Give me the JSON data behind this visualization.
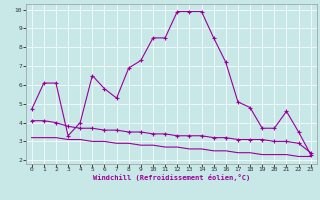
{
  "xlabel": "Windchill (Refroidissement éolien,°C)",
  "ylabel": "",
  "bg_color": "#c8e8e8",
  "line_color": "#990099",
  "xlim": [
    -0.5,
    23.5
  ],
  "ylim": [
    1.8,
    10.3
  ],
  "yticks": [
    2,
    3,
    4,
    5,
    6,
    7,
    8,
    9,
    10
  ],
  "xticks": [
    0,
    1,
    2,
    3,
    4,
    5,
    6,
    7,
    8,
    9,
    10,
    11,
    12,
    13,
    14,
    15,
    16,
    17,
    18,
    19,
    20,
    21,
    22,
    23
  ],
  "line1_x": [
    0,
    1,
    2,
    3,
    4,
    5,
    6,
    7,
    8,
    9,
    10,
    11,
    12,
    13,
    14,
    15,
    16,
    17,
    18,
    19,
    20,
    21,
    22,
    23
  ],
  "line1_y": [
    4.7,
    6.1,
    6.1,
    3.3,
    4.0,
    6.5,
    5.8,
    5.3,
    6.9,
    7.3,
    8.5,
    8.5,
    9.9,
    9.9,
    9.9,
    8.5,
    7.2,
    5.1,
    4.8,
    3.7,
    3.7,
    4.6,
    3.5,
    2.3
  ],
  "line2_x": [
    0,
    1,
    2,
    3,
    4,
    5,
    6,
    7,
    8,
    9,
    10,
    11,
    12,
    13,
    14,
    15,
    16,
    17,
    18,
    19,
    20,
    21,
    22,
    23
  ],
  "line2_y": [
    4.1,
    4.1,
    4.0,
    3.8,
    3.7,
    3.7,
    3.6,
    3.6,
    3.5,
    3.5,
    3.4,
    3.4,
    3.3,
    3.3,
    3.3,
    3.2,
    3.2,
    3.1,
    3.1,
    3.1,
    3.0,
    3.0,
    2.9,
    2.4
  ],
  "line3_x": [
    0,
    1,
    2,
    3,
    4,
    5,
    6,
    7,
    8,
    9,
    10,
    11,
    12,
    13,
    14,
    15,
    16,
    17,
    18,
    19,
    20,
    21,
    22,
    23
  ],
  "line3_y": [
    3.2,
    3.2,
    3.2,
    3.1,
    3.1,
    3.0,
    3.0,
    2.9,
    2.9,
    2.8,
    2.8,
    2.7,
    2.7,
    2.6,
    2.6,
    2.5,
    2.5,
    2.4,
    2.4,
    2.3,
    2.3,
    2.3,
    2.2,
    2.2
  ],
  "marker_size": 2.5,
  "linewidth": 0.8,
  "xlabel_fontsize": 5.0,
  "tick_fontsize": 4.5,
  "grid_color": "#ffffff",
  "grid_linewidth": 0.5
}
